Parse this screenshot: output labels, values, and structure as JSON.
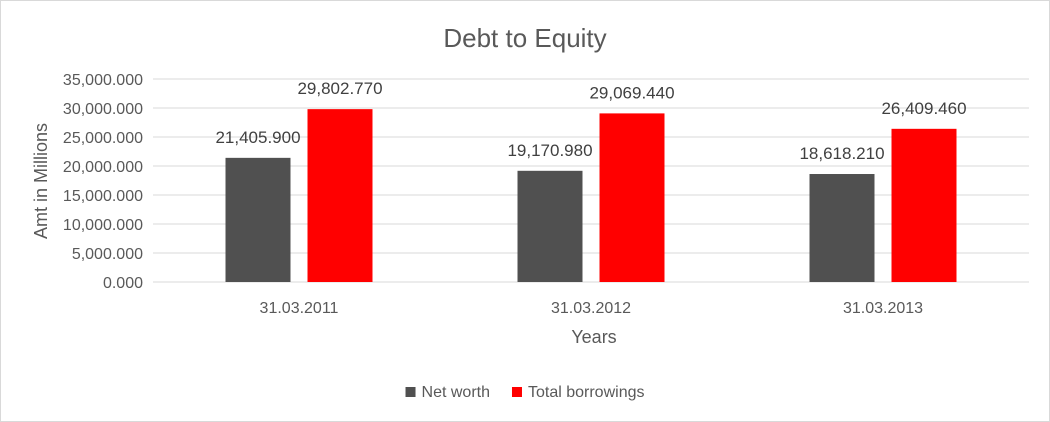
{
  "chart_data": {
    "type": "bar",
    "title": "Debt to Equity",
    "xlabel": "Years",
    "ylabel": "Amt in Millions",
    "categories": [
      "31.03.2011",
      "31.03.2012",
      "31.03.2013"
    ],
    "series": [
      {
        "name": "Net worth",
        "color": "#505050",
        "values": [
          21405.9,
          19170.98,
          18618.21
        ],
        "labels": [
          "21,405.900",
          "19,170.980",
          "18,618.210"
        ]
      },
      {
        "name": "Total borrowings",
        "color": "#ff0000",
        "values": [
          29802.77,
          29069.44,
          26409.46
        ],
        "labels": [
          "29,802.770",
          "29,069.440",
          "26,409.460"
        ]
      }
    ],
    "ylim": [
      0,
      35000
    ],
    "yticks": [
      0,
      5000,
      10000,
      15000,
      20000,
      25000,
      30000,
      35000
    ],
    "ytick_labels": [
      "0.000",
      "5,000.000",
      "10,000.000",
      "15,000.000",
      "20,000.000",
      "25,000.000",
      "30,000.000",
      "35,000.000"
    ],
    "grid": true,
    "legend_position": "bottom"
  }
}
